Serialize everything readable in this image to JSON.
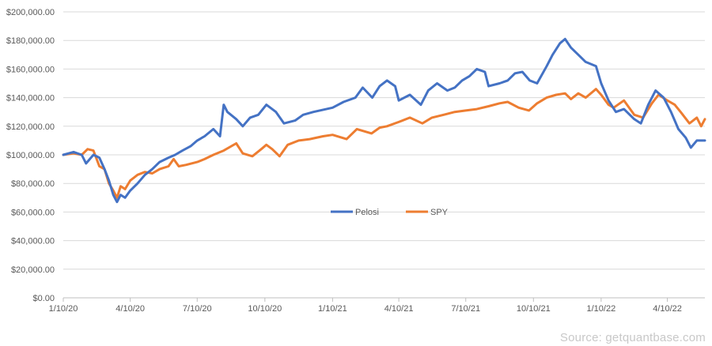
{
  "chart_data": {
    "type": "line",
    "title": "",
    "xlabel": "",
    "ylabel": "",
    "ylim": [
      0,
      200000
    ],
    "y_ticks": [
      "$0.00",
      "$20,000.00",
      "$40,000.00",
      "$60,000.00",
      "$80,000.00",
      "$100,000.00",
      "$120,000.00",
      "$140,000.00",
      "$160,000.00",
      "$180,000.00",
      "$200,000.00"
    ],
    "x_ticks": [
      "1/10/20",
      "4/10/20",
      "7/10/20",
      "10/10/20",
      "1/10/21",
      "4/10/21",
      "7/10/21",
      "10/10/21",
      "1/10/22",
      "4/10/22"
    ],
    "x_tick_dates": [
      "2020-01-10",
      "2020-04-10",
      "2020-07-10",
      "2020-10-10",
      "2021-01-10",
      "2021-04-10",
      "2021-07-10",
      "2021-10-10",
      "2022-01-10",
      "2022-04-10"
    ],
    "x_range": [
      "2020-01-10",
      "2022-05-31"
    ],
    "grid": "horizontal",
    "legend": "center",
    "series": [
      {
        "name": "Pelosi",
        "color": "#4472c4",
        "points": [
          [
            "2020-01-10",
            100000
          ],
          [
            "2020-01-24",
            102000
          ],
          [
            "2020-02-04",
            100000
          ],
          [
            "2020-02-10",
            94000
          ],
          [
            "2020-02-20",
            100000
          ],
          [
            "2020-02-28",
            98000
          ],
          [
            "2020-03-06",
            90000
          ],
          [
            "2020-03-12",
            82000
          ],
          [
            "2020-03-18",
            72000
          ],
          [
            "2020-03-23",
            67000
          ],
          [
            "2020-03-28",
            72000
          ],
          [
            "2020-04-03",
            70000
          ],
          [
            "2020-04-10",
            75000
          ],
          [
            "2020-04-20",
            80000
          ],
          [
            "2020-04-30",
            86000
          ],
          [
            "2020-05-10",
            90000
          ],
          [
            "2020-05-20",
            95000
          ],
          [
            "2020-06-01",
            98000
          ],
          [
            "2020-06-10",
            100000
          ],
          [
            "2020-06-20",
            103000
          ],
          [
            "2020-07-01",
            106000
          ],
          [
            "2020-07-10",
            110000
          ],
          [
            "2020-07-20",
            113000
          ],
          [
            "2020-08-01",
            118000
          ],
          [
            "2020-08-10",
            113000
          ],
          [
            "2020-08-15",
            135000
          ],
          [
            "2020-08-20",
            130000
          ],
          [
            "2020-09-01",
            125000
          ],
          [
            "2020-09-10",
            120000
          ],
          [
            "2020-09-20",
            126000
          ],
          [
            "2020-10-01",
            128000
          ],
          [
            "2020-10-12",
            135000
          ],
          [
            "2020-10-25",
            130000
          ],
          [
            "2020-11-05",
            122000
          ],
          [
            "2020-11-20",
            124000
          ],
          [
            "2020-12-01",
            128000
          ],
          [
            "2020-12-15",
            130000
          ],
          [
            "2021-01-10",
            133000
          ],
          [
            "2021-01-25",
            137000
          ],
          [
            "2021-02-10",
            140000
          ],
          [
            "2021-02-20",
            147000
          ],
          [
            "2021-03-05",
            140000
          ],
          [
            "2021-03-15",
            148000
          ],
          [
            "2021-03-25",
            152000
          ],
          [
            "2021-04-05",
            148000
          ],
          [
            "2021-04-10",
            138000
          ],
          [
            "2021-04-25",
            142000
          ],
          [
            "2021-05-10",
            135000
          ],
          [
            "2021-05-20",
            145000
          ],
          [
            "2021-06-01",
            150000
          ],
          [
            "2021-06-15",
            145000
          ],
          [
            "2021-06-25",
            147000
          ],
          [
            "2021-07-05",
            152000
          ],
          [
            "2021-07-15",
            155000
          ],
          [
            "2021-07-25",
            160000
          ],
          [
            "2021-08-05",
            158000
          ],
          [
            "2021-08-10",
            148000
          ],
          [
            "2021-08-25",
            150000
          ],
          [
            "2021-09-05",
            152000
          ],
          [
            "2021-09-15",
            157000
          ],
          [
            "2021-09-25",
            158000
          ],
          [
            "2021-10-05",
            152000
          ],
          [
            "2021-10-15",
            150000
          ],
          [
            "2021-10-28",
            162000
          ],
          [
            "2021-11-05",
            170000
          ],
          [
            "2021-11-15",
            178000
          ],
          [
            "2021-11-22",
            181000
          ],
          [
            "2021-11-30",
            175000
          ],
          [
            "2021-12-10",
            170000
          ],
          [
            "2021-12-20",
            165000
          ],
          [
            "2022-01-03",
            162000
          ],
          [
            "2022-01-10",
            150000
          ],
          [
            "2022-01-20",
            138000
          ],
          [
            "2022-01-30",
            130000
          ],
          [
            "2022-02-10",
            132000
          ],
          [
            "2022-02-24",
            125000
          ],
          [
            "2022-03-05",
            122000
          ],
          [
            "2022-03-15",
            135000
          ],
          [
            "2022-03-25",
            145000
          ],
          [
            "2022-04-05",
            140000
          ],
          [
            "2022-04-15",
            130000
          ],
          [
            "2022-04-25",
            118000
          ],
          [
            "2022-05-05",
            112000
          ],
          [
            "2022-05-12",
            105000
          ],
          [
            "2022-05-20",
            110000
          ],
          [
            "2022-05-31",
            110000
          ]
        ]
      },
      {
        "name": "SPY",
        "color": "#ed7d31",
        "points": [
          [
            "2020-01-10",
            100000
          ],
          [
            "2020-01-24",
            101000
          ],
          [
            "2020-02-04",
            100000
          ],
          [
            "2020-02-12",
            104000
          ],
          [
            "2020-02-20",
            103000
          ],
          [
            "2020-02-28",
            92000
          ],
          [
            "2020-03-06",
            90000
          ],
          [
            "2020-03-12",
            80000
          ],
          [
            "2020-03-18",
            75000
          ],
          [
            "2020-03-23",
            70000
          ],
          [
            "2020-03-28",
            78000
          ],
          [
            "2020-04-03",
            76000
          ],
          [
            "2020-04-10",
            82000
          ],
          [
            "2020-04-20",
            86000
          ],
          [
            "2020-04-30",
            88000
          ],
          [
            "2020-05-10",
            87000
          ],
          [
            "2020-05-20",
            90000
          ],
          [
            "2020-06-01",
            92000
          ],
          [
            "2020-06-08",
            97000
          ],
          [
            "2020-06-15",
            92000
          ],
          [
            "2020-06-25",
            93000
          ],
          [
            "2020-07-10",
            95000
          ],
          [
            "2020-07-20",
            97000
          ],
          [
            "2020-08-01",
            100000
          ],
          [
            "2020-08-15",
            103000
          ],
          [
            "2020-09-01",
            108000
          ],
          [
            "2020-09-10",
            101000
          ],
          [
            "2020-09-23",
            99000
          ],
          [
            "2020-10-05",
            104000
          ],
          [
            "2020-10-12",
            107000
          ],
          [
            "2020-10-20",
            104000
          ],
          [
            "2020-10-30",
            99000
          ],
          [
            "2020-11-10",
            107000
          ],
          [
            "2020-11-25",
            110000
          ],
          [
            "2020-12-10",
            111000
          ],
          [
            "2020-12-28",
            113000
          ],
          [
            "2021-01-10",
            114000
          ],
          [
            "2021-01-29",
            111000
          ],
          [
            "2021-02-12",
            118000
          ],
          [
            "2021-03-04",
            115000
          ],
          [
            "2021-03-15",
            119000
          ],
          [
            "2021-03-25",
            120000
          ],
          [
            "2021-04-10",
            123000
          ],
          [
            "2021-04-25",
            126000
          ],
          [
            "2021-05-12",
            122000
          ],
          [
            "2021-05-25",
            126000
          ],
          [
            "2021-06-10",
            128000
          ],
          [
            "2021-06-25",
            130000
          ],
          [
            "2021-07-10",
            131000
          ],
          [
            "2021-07-25",
            132000
          ],
          [
            "2021-08-10",
            134000
          ],
          [
            "2021-08-25",
            136000
          ],
          [
            "2021-09-05",
            137000
          ],
          [
            "2021-09-20",
            133000
          ],
          [
            "2021-10-04",
            131000
          ],
          [
            "2021-10-15",
            136000
          ],
          [
            "2021-10-28",
            140000
          ],
          [
            "2021-11-10",
            142000
          ],
          [
            "2021-11-22",
            143000
          ],
          [
            "2021-11-30",
            139000
          ],
          [
            "2021-12-10",
            143000
          ],
          [
            "2021-12-20",
            140000
          ],
          [
            "2022-01-03",
            146000
          ],
          [
            "2022-01-10",
            142000
          ],
          [
            "2022-01-20",
            135000
          ],
          [
            "2022-01-27",
            133000
          ],
          [
            "2022-02-10",
            138000
          ],
          [
            "2022-02-24",
            128000
          ],
          [
            "2022-03-08",
            126000
          ],
          [
            "2022-03-20",
            136000
          ],
          [
            "2022-03-29",
            142000
          ],
          [
            "2022-04-10",
            138000
          ],
          [
            "2022-04-20",
            135000
          ],
          [
            "2022-04-28",
            130000
          ],
          [
            "2022-05-10",
            122000
          ],
          [
            "2022-05-20",
            126000
          ],
          [
            "2022-05-26",
            120000
          ],
          [
            "2022-05-31",
            125000
          ]
        ]
      }
    ]
  },
  "source_text": "Source: getquantbase.com"
}
